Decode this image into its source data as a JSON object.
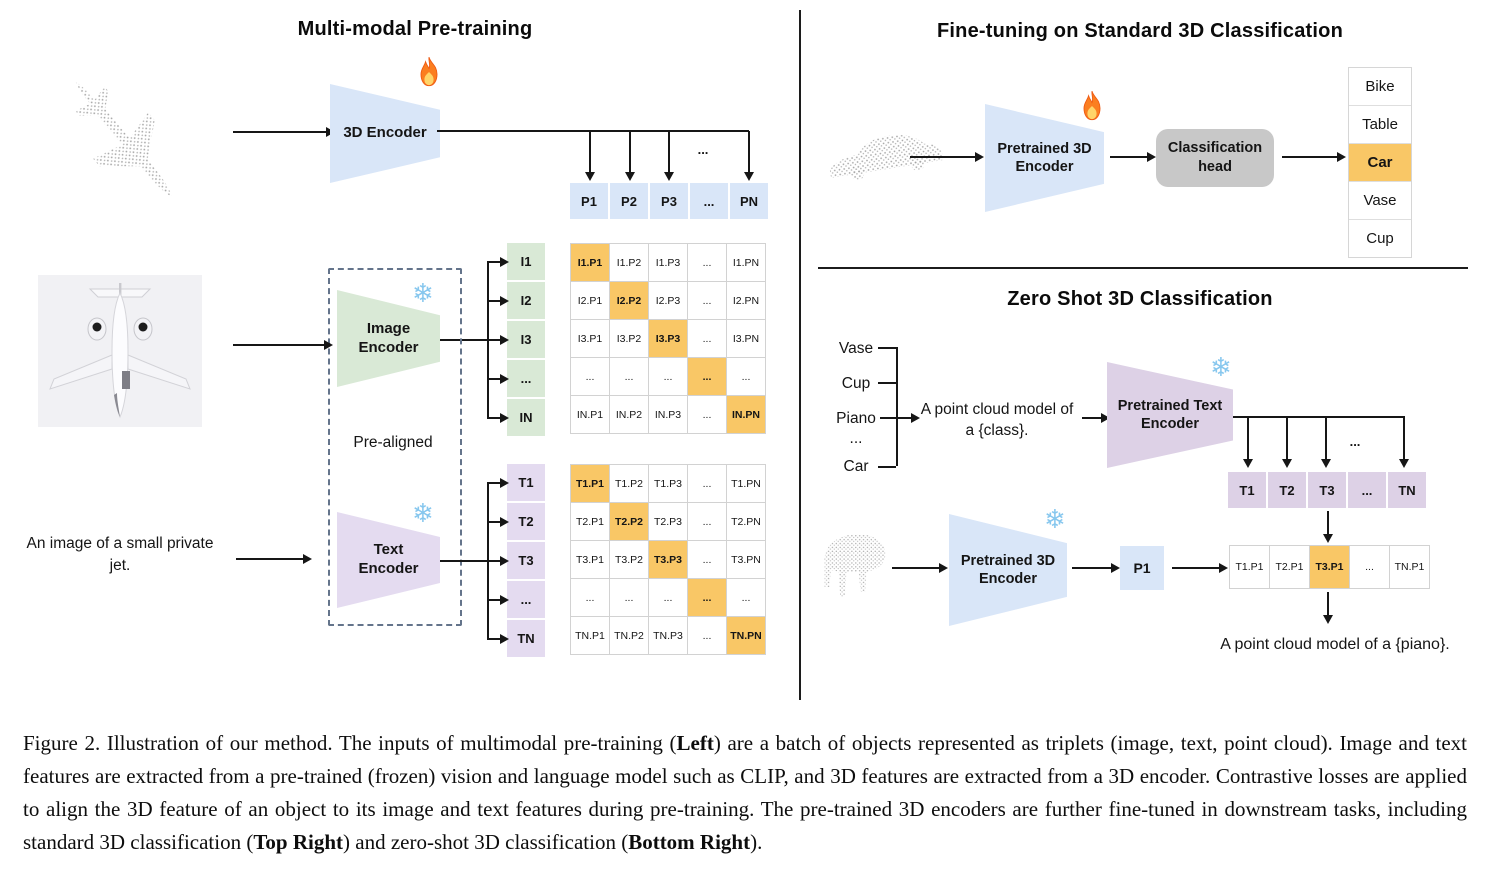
{
  "colors": {
    "feature_blue": "#d9e6f8",
    "image_green": "#d9e9d6",
    "text_purple": "#e4dbf0",
    "highlight_orange": "#f9c766",
    "head_gray": "#c8c8c8"
  },
  "icons": {
    "snowflake": "❄",
    "fire": "flame"
  },
  "pretrain": {
    "title": "Multi-modal Pre-training",
    "encoder_3d_label": "3D Encoder",
    "image_encoder_label": "Image Encoder",
    "text_encoder_label": "Text Encoder",
    "pre_aligned_label": "Pre-aligned",
    "text_input": "An image of a small private jet.",
    "ellipsis": "...",
    "p_row": [
      "P1",
      "P2",
      "P3",
      "...",
      "PN"
    ],
    "i_labels": [
      "I1",
      "I2",
      "I3",
      "...",
      "IN"
    ],
    "i_matrix": [
      [
        "I1.P1",
        "I1.P2",
        "I1.P3",
        "...",
        "I1.PN"
      ],
      [
        "I2.P1",
        "I2.P2",
        "I2.P3",
        "...",
        "I2.PN"
      ],
      [
        "I3.P1",
        "I3.P2",
        "I3.P3",
        "...",
        "I3.PN"
      ],
      [
        "...",
        "...",
        "...",
        "...",
        "..."
      ],
      [
        "IN.P1",
        "IN.P2",
        "IN.P3",
        "...",
        "IN.PN"
      ]
    ],
    "t_labels": [
      "T1",
      "T2",
      "T3",
      "...",
      "TN"
    ],
    "t_matrix": [
      [
        "T1.P1",
        "T1.P2",
        "T1.P3",
        "...",
        "T1.PN"
      ],
      [
        "T2.P1",
        "T2.P2",
        "T2.P3",
        "...",
        "T2.PN"
      ],
      [
        "T3.P1",
        "T3.P2",
        "T3.P3",
        "...",
        "T3.PN"
      ],
      [
        "...",
        "...",
        "...",
        "...",
        "..."
      ],
      [
        "TN.P1",
        "TN.P2",
        "TN.P3",
        "...",
        "TN.PN"
      ]
    ]
  },
  "finetune": {
    "title": "Fine-tuning on Standard 3D Classification",
    "encoder_label": "Pretrained 3D Encoder",
    "head_label": "Classification head",
    "classes": [
      "Bike",
      "Table",
      "Car",
      "Vase",
      "Cup"
    ],
    "highlighted_class": "Car"
  },
  "zeroshot": {
    "title": "Zero Shot 3D Classification",
    "class_words": [
      "Vase",
      "Cup",
      "Piano",
      "...",
      "Car"
    ],
    "prompt_line1": "A point cloud model of",
    "prompt_line2": "a {class}.",
    "text_encoder_label": "Pretrained Text Encoder",
    "encoder_label": "Pretrained 3D Encoder",
    "p1_label": "P1",
    "ellipsis": "...",
    "t_row": [
      "T1",
      "T2",
      "T3",
      "...",
      "TN"
    ],
    "match_row": [
      "T1.P1",
      "T2.P1",
      "T3.P1",
      "...",
      "TN.P1"
    ],
    "highlighted_match": "T3.P1",
    "result_text": "A point cloud model of a {piano}."
  },
  "caption": {
    "s1": "Figure 2. Illustration of our method. The inputs of multimodal pre-training (",
    "s2": "Left",
    "s3": ") are a batch of objects represented as triplets (image, text, point cloud). Image and text features are extracted from a pre-trained (frozen) vision and language model such as CLIP, and 3D features are extracted from a 3D encoder. Contrastive losses are applied to align the 3D feature of an object to its image and text features during pre-training. The pre-trained 3D encoders are further fine-tuned in downstream tasks, including standard 3D classification (",
    "s4": "Top Right",
    "s5": ") and zero-shot 3D classification (",
    "s6": "Bottom Right",
    "s7": ")."
  }
}
